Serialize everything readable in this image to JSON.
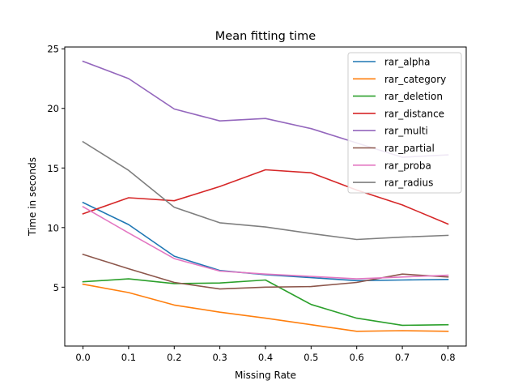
{
  "chart_data": {
    "type": "line",
    "title": "Mean fitting time",
    "xlabel": "Missing Rate",
    "ylabel": "Time in seconds",
    "x": [
      0.0,
      0.1,
      0.2,
      0.3,
      0.4,
      0.5,
      0.6,
      0.7,
      0.8
    ],
    "xticks": [
      "0.0",
      "0.1",
      "0.2",
      "0.3",
      "0.4",
      "0.5",
      "0.6",
      "0.7",
      "0.8"
    ],
    "yticks": [
      5,
      10,
      15,
      20,
      25
    ],
    "xlim": [
      -0.04,
      0.84
    ],
    "ylim": [
      0.06,
      25.15
    ],
    "legend_position": "top-right",
    "grid": false,
    "series": [
      {
        "name": "rar_alpha",
        "color": "#1f77b4",
        "values": [
          12.1,
          10.25,
          7.6,
          6.4,
          6.05,
          5.8,
          5.55,
          5.6,
          5.65
        ]
      },
      {
        "name": "rar_category",
        "color": "#ff7f0e",
        "values": [
          5.25,
          4.55,
          3.5,
          2.9,
          2.4,
          1.85,
          1.3,
          1.35,
          1.3
        ]
      },
      {
        "name": "rar_deletion",
        "color": "#2ca02c",
        "values": [
          5.45,
          5.7,
          5.3,
          5.35,
          5.6,
          3.55,
          2.4,
          1.8,
          1.85
        ]
      },
      {
        "name": "rar_distance",
        "color": "#d62728",
        "values": [
          11.15,
          12.5,
          12.25,
          13.45,
          14.85,
          14.6,
          13.15,
          11.9,
          10.3
        ]
      },
      {
        "name": "rar_multi",
        "color": "#9467bd",
        "values": [
          23.95,
          22.5,
          19.95,
          18.95,
          19.15,
          18.3,
          17.1,
          15.9,
          16.1
        ]
      },
      {
        "name": "rar_partial",
        "color": "#8c564b",
        "values": [
          7.75,
          6.55,
          5.4,
          4.85,
          5.0,
          5.05,
          5.4,
          6.1,
          5.85
        ]
      },
      {
        "name": "rar_proba",
        "color": "#e377c2",
        "values": [
          11.75,
          9.55,
          7.4,
          6.35,
          6.1,
          5.9,
          5.7,
          5.85,
          6.0
        ]
      },
      {
        "name": "rar_radius",
        "color": "#7f7f7f",
        "values": [
          17.2,
          14.8,
          11.7,
          10.4,
          10.05,
          9.5,
          9.0,
          9.2,
          9.35
        ]
      }
    ]
  }
}
